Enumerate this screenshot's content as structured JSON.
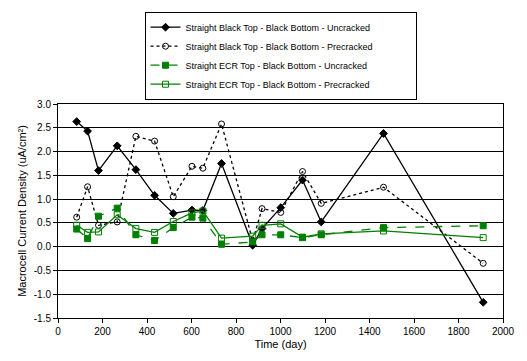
{
  "chart_data": {
    "type": "line",
    "x_label": "Time (day)",
    "y_label": "Macrocell Current Density (uA/cm²)",
    "x": [
      84,
      133,
      182,
      266,
      350,
      434,
      518,
      602,
      651,
      735,
      875,
      917,
      1001,
      1099,
      1183,
      1463,
      1911
    ],
    "series": [
      {
        "name": "Straight Black Top - Black Bottom - Uncracked",
        "color": "#000000",
        "marker": "diamond",
        "line_style": "solid",
        "values": [
          2.63,
          2.43,
          1.6,
          2.12,
          1.62,
          1.08,
          0.7,
          0.77,
          0.76,
          1.75,
          0.03,
          0.38,
          0.82,
          1.4,
          0.52,
          2.38,
          -1.17
        ]
      },
      {
        "name": "Straight Black Top - Black Bottom - Precracked",
        "color": "#000000",
        "marker": "circle-open",
        "line_style": "dot",
        "values": [
          0.62,
          1.26,
          0.45,
          0.52,
          2.32,
          2.22,
          1.05,
          1.69,
          1.65,
          2.58,
          0.12,
          0.8,
          0.72,
          1.58,
          0.91,
          1.25,
          -0.35
        ]
      },
      {
        "name": "Straight ECR Top - Black Bottom - Uncracked",
        "color": "#008000",
        "marker": "square",
        "line_style": "dash",
        "values": [
          0.37,
          0.17,
          0.64,
          0.81,
          0.25,
          0.13,
          0.4,
          0.62,
          0.6,
          0.05,
          0.1,
          0.25,
          0.25,
          0.19,
          0.25,
          0.4,
          0.44
        ]
      },
      {
        "name": "Straight ECR Top - Black Bottom - Precracked",
        "color": "#008000",
        "marker": "square-open",
        "line_style": "solid",
        "values": [
          0.45,
          0.3,
          0.31,
          0.67,
          0.38,
          0.3,
          0.53,
          0.71,
          0.75,
          0.18,
          0.22,
          0.45,
          0.48,
          0.2,
          0.27,
          0.33,
          0.19
        ]
      }
    ],
    "xlim": [
      0,
      2000
    ],
    "xticks": [
      0,
      200,
      400,
      600,
      800,
      1000,
      1200,
      1400,
      1600,
      1800,
      2000
    ],
    "ylim": [
      -1.5,
      3.0
    ],
    "yticks": [
      -1.5,
      {
        "value": -1.0,
        "label": "-1.0"
      },
      -0.5,
      {
        "value": 0,
        "label": "0.0"
      },
      0.5,
      {
        "value": 1.0,
        "label": "1.0"
      },
      1.5,
      {
        "value": 2.0,
        "label": "2.0"
      },
      2.5,
      {
        "value": 3.0,
        "label": "3.0"
      }
    ],
    "grid": true,
    "legend": "top"
  }
}
